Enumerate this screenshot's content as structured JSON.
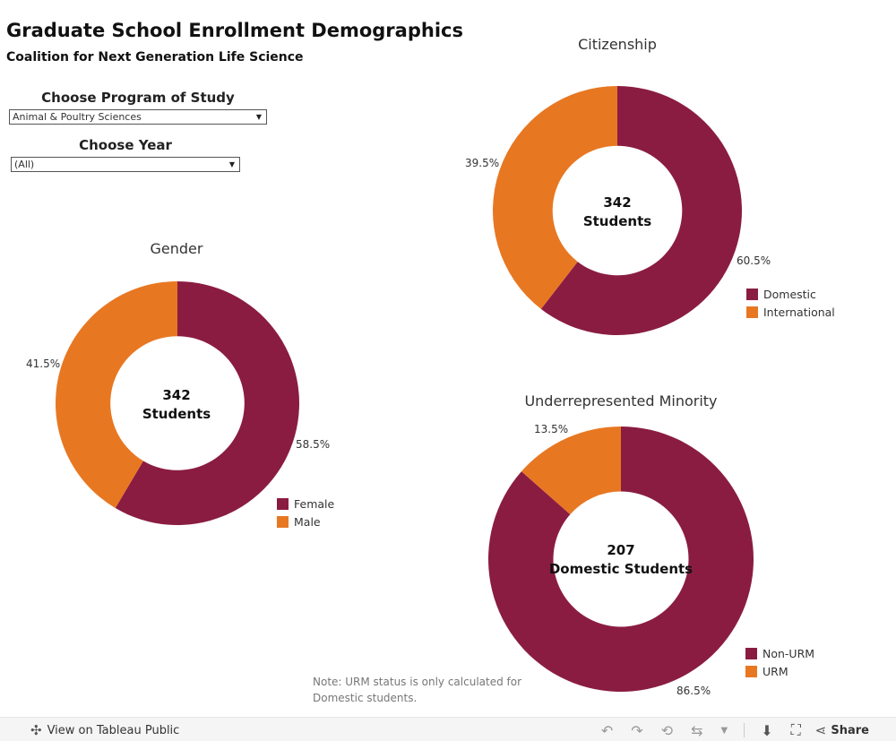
{
  "header": {
    "title": "Graduate School Enrollment Demographics",
    "subtitle": "Coalition for Next Generation Life Science"
  },
  "filters": {
    "program_label": "Choose Program of Study",
    "program_value": "Animal & Poultry Sciences",
    "year_label": "Choose Year",
    "year_value": "(All)"
  },
  "colors": {
    "primary": "#8a1c42",
    "secondary": "#e87722"
  },
  "chart_data": [
    {
      "id": "citizenship",
      "type": "pie",
      "title": "Citizenship",
      "center_value": "342",
      "center_unit": "Students",
      "slices": [
        {
          "label": "Domestic",
          "value": 60.5,
          "display": "60.5%"
        },
        {
          "label": "International",
          "value": 39.5,
          "display": "39.5%"
        }
      ]
    },
    {
      "id": "gender",
      "type": "pie",
      "title": "Gender",
      "center_value": "342",
      "center_unit": "Students",
      "slices": [
        {
          "label": "Female",
          "value": 58.5,
          "display": "58.5%"
        },
        {
          "label": "Male",
          "value": 41.5,
          "display": "41.5%"
        }
      ]
    },
    {
      "id": "urm",
      "type": "pie",
      "title": "Underrepresented Minority",
      "center_value": "207",
      "center_unit": "Domestic Students",
      "slices": [
        {
          "label": "Non-URM",
          "value": 86.5,
          "display": "86.5%"
        },
        {
          "label": "URM",
          "value": 13.5,
          "display": "13.5%"
        }
      ]
    }
  ],
  "note": "Note: URM status is only calculated for Domestic students.",
  "footer": {
    "view_label": "View on Tableau Public",
    "share_label": "Share"
  }
}
